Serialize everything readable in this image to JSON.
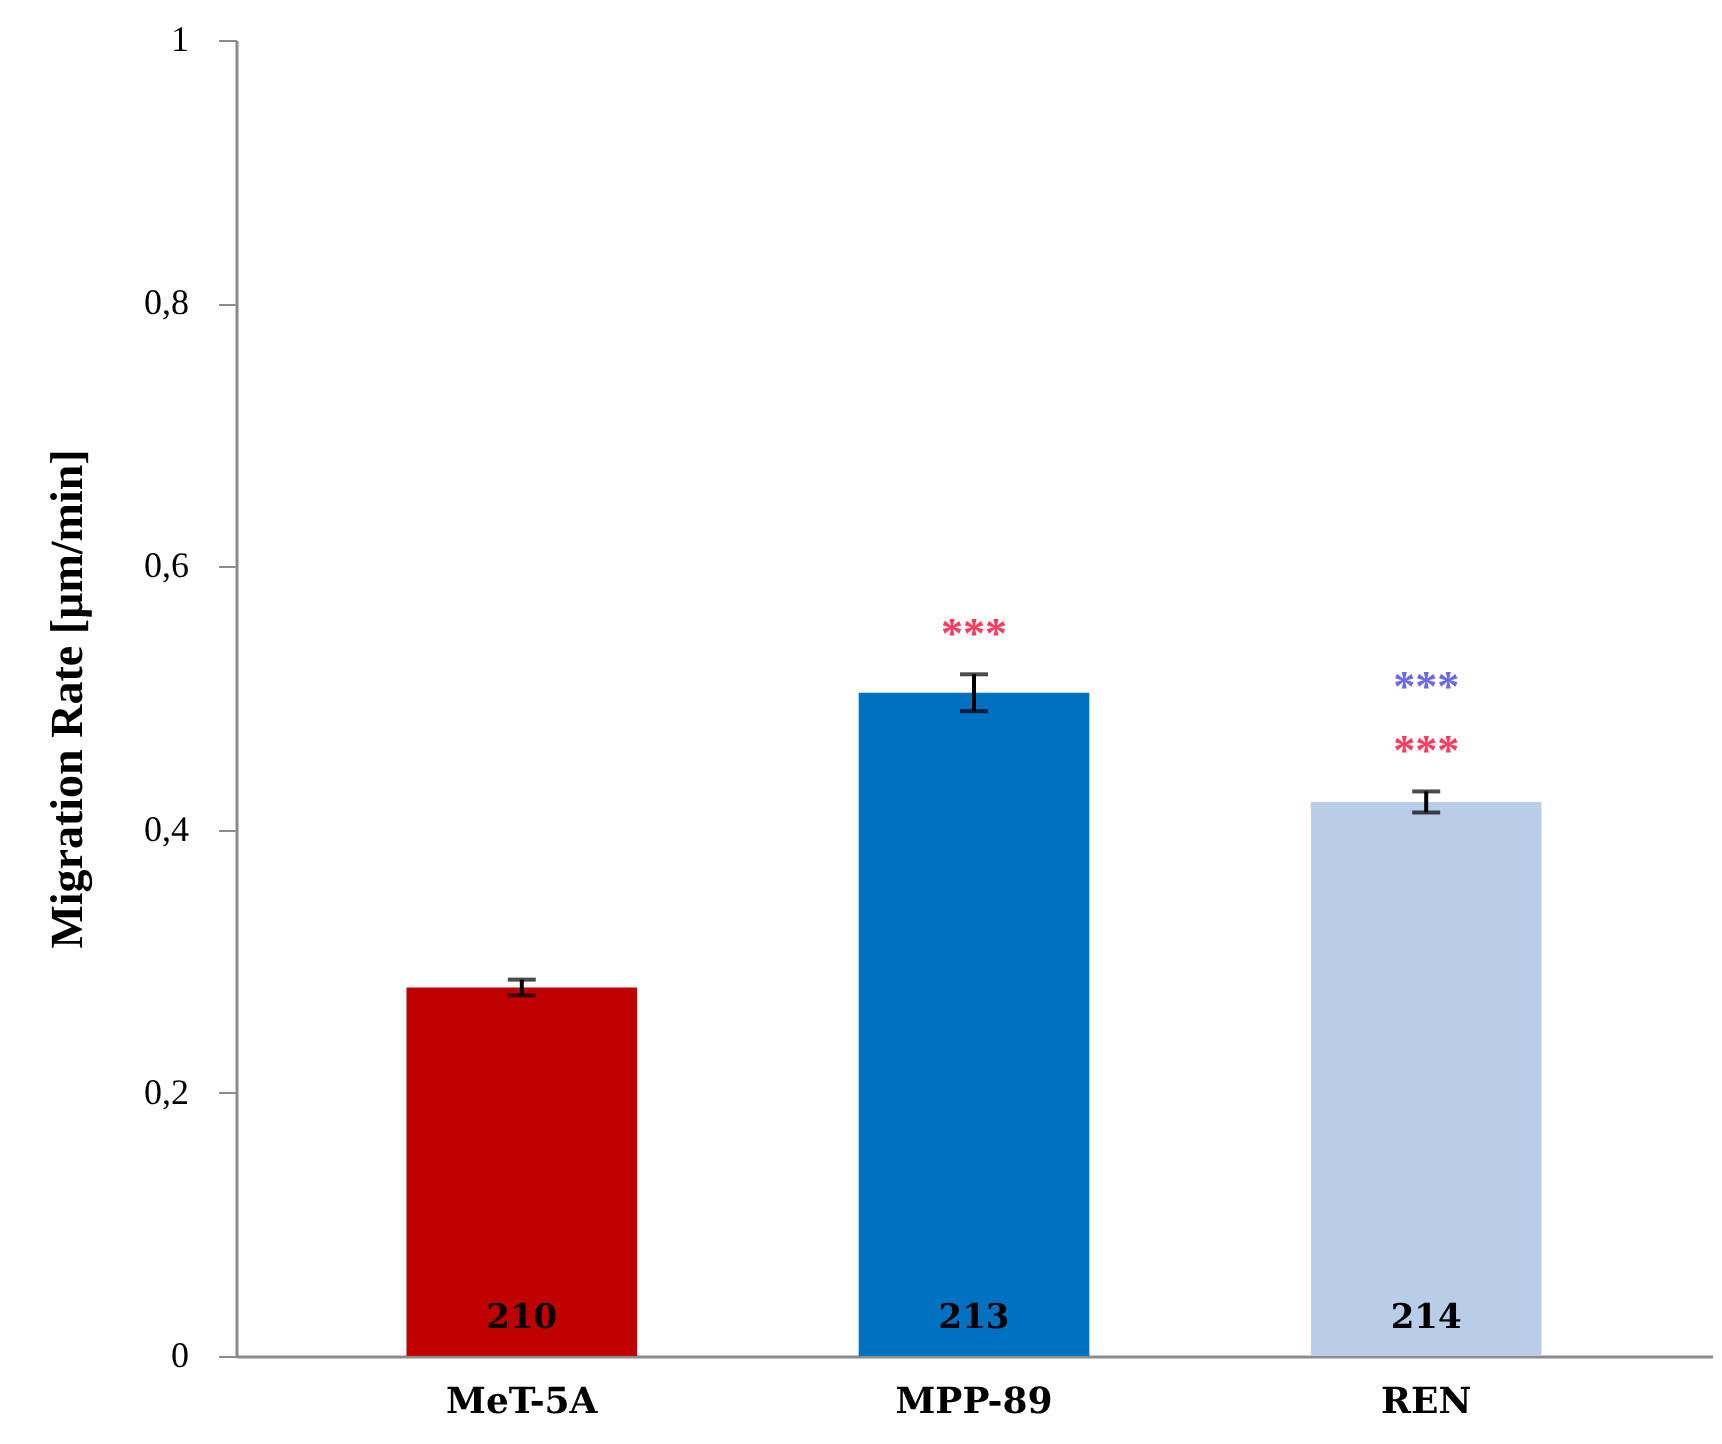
{
  "chart_data": {
    "type": "bar",
    "ylabel": "Migration Rate [µm/min]",
    "categories": [
      "MeT-5A",
      "MPP-89",
      "REN"
    ],
    "values": [
      0.28,
      0.504,
      0.421
    ],
    "errors": [
      0.006,
      0.014,
      0.008
    ],
    "colors": [
      "#c00000",
      "#0070c0",
      "#b9cde9"
    ],
    "ylim": [
      0,
      1
    ],
    "yticks": [
      0,
      {
        "value": 0.2,
        "label": "0,2"
      },
      {
        "value": 0.4,
        "label": "0,4"
      },
      {
        "value": 0.6,
        "label": "0,6"
      },
      {
        "value": 0.8,
        "label": "0,8"
      },
      1
    ],
    "annotations": [
      "210",
      "213",
      "214",
      "***",
      "***",
      "***"
    ]
  }
}
